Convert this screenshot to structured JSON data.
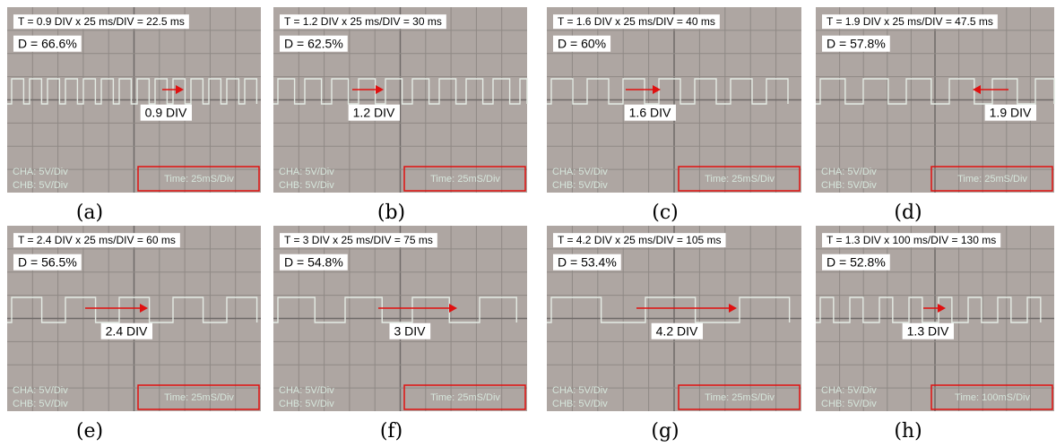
{
  "panels": [
    {
      "caption": "(a)",
      "formula": "T = 0.9 DIV x 25 ms/DIV = 22.5 ms",
      "duty": "D = 66.6%",
      "div": "0.9 DIV",
      "cha": "CHA: 5V/Div",
      "chb": "CHB: 5V/Div",
      "time": "Time: 25mS/Div"
    },
    {
      "caption": "(b)",
      "formula": "T = 1.2 DIV x 25 ms/DIV = 30 ms",
      "duty": "D = 62.5%",
      "div": "1.2 DIV",
      "cha": "CHA: 5V/Div",
      "chb": "CHB: 5V/Div",
      "time": "Time: 25mS/Div"
    },
    {
      "caption": "(c)",
      "formula": "T = 1.6 DIV x 25 ms/DIV = 40 ms",
      "duty": "D = 60%",
      "div": "1.6 DIV",
      "cha": "CHA: 5V/Div",
      "chb": "CHB: 5V/Div",
      "time": "Time: 25mS/Div"
    },
    {
      "caption": "(d)",
      "formula": "T = 1.9 DIV x 25 ms/DIV = 47.5 ms",
      "duty": "D = 57.8%",
      "div": "1.9 DIV",
      "cha": "CHA: 5V/Div",
      "chb": "CHB: 5V/Div",
      "time": "Time: 25mS/Div"
    },
    {
      "caption": "(e)",
      "formula": "T = 2.4 DIV x 25 ms/DIV = 60 ms",
      "duty": "D = 56.5%",
      "div": "2.4 DIV",
      "cha": "CHA: 5V/Div",
      "chb": "CHB: 5V/Div",
      "time": "Time: 25mS/Div"
    },
    {
      "caption": "(f)",
      "formula": "T = 3 DIV x 25 ms/DIV = 75 ms",
      "duty": "D = 54.8%",
      "div": "3 DIV",
      "cha": "CHA: 5V/Div",
      "chb": "CHB: 5V/Div",
      "time": "Time: 25mS/Div"
    },
    {
      "caption": "(g)",
      "formula": "T = 4.2 DIV x 25 ms/DIV = 105 ms",
      "duty": "D = 53.4%",
      "div": "4.2 DIV",
      "cha": "CHA: 5V/Div",
      "chb": "CHB: 5V/Div",
      "time": "Time: 25mS/Div"
    },
    {
      "caption": "(h)",
      "formula": "T = 1.3 DIV x 100 ms/DIV = 130 ms",
      "duty": "D = 52.8%",
      "div": "1.3 DIV",
      "cha": "CHA: 5V/Div",
      "chb": "CHB: 5V/Div",
      "time": "Time: 100mS/Div"
    }
  ]
}
